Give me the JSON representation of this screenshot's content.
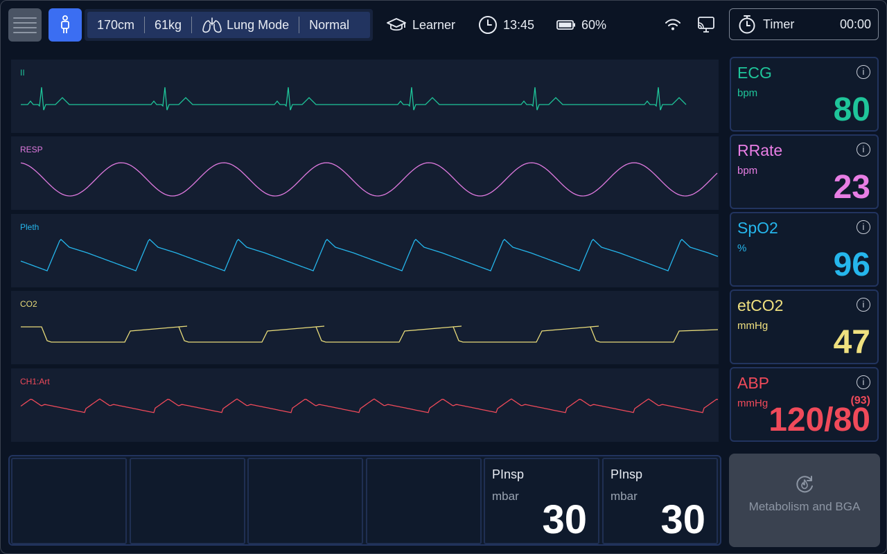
{
  "header": {
    "patient": {
      "height": "170cm",
      "weight": "61kg",
      "mode": "Lung Mode",
      "condition": "Normal"
    },
    "role": "Learner",
    "time": "13:45",
    "battery": "60%",
    "timer": {
      "label": "Timer",
      "value": "00:00"
    }
  },
  "waves": [
    {
      "label": "II",
      "color": "#1fc59a"
    },
    {
      "label": "RESP",
      "color": "#e07ae0"
    },
    {
      "label": "Pleth",
      "color": "#25b6ec"
    },
    {
      "label": "CO2",
      "color": "#e9dc7a"
    },
    {
      "label": "CH1:Art",
      "color": "#f04a5a"
    }
  ],
  "vitals": [
    {
      "name": "ECG",
      "unit": "bpm",
      "value": "80",
      "color": "#1fc59a"
    },
    {
      "name": "RRate",
      "unit": "bpm",
      "value": "23",
      "color": "#e87ee4"
    },
    {
      "name": "SpO2",
      "unit": "%",
      "value": "96",
      "color": "#25b6ec"
    },
    {
      "name": "etCO2",
      "unit": "mmHg",
      "value": "47",
      "color": "#efe07f"
    },
    {
      "name": "ABP",
      "unit": "mmHg",
      "value": "120/80",
      "mean": "(93)",
      "color": "#f04a5a"
    }
  ],
  "params": [
    {
      "name": "",
      "unit": "",
      "value": ""
    },
    {
      "name": "",
      "unit": "",
      "value": ""
    },
    {
      "name": "",
      "unit": "",
      "value": ""
    },
    {
      "name": "",
      "unit": "",
      "value": ""
    },
    {
      "name": "PInsp",
      "unit": "mbar",
      "value": "30"
    },
    {
      "name": "PInsp",
      "unit": "mbar",
      "value": "30"
    }
  ],
  "metabolism_button": {
    "label": "Metabolism and BGA"
  },
  "icons": {
    "menu": "menu-icon",
    "patient": "person-icon",
    "lung": "lungs-icon",
    "role": "graduation-cap-icon",
    "clock": "clock-icon",
    "battery": "battery-icon",
    "wifi": "wifi-icon",
    "cast": "cast-icon",
    "timer": "stopwatch-icon",
    "info": "info-icon",
    "metabolism": "refresh-flame-icon"
  }
}
